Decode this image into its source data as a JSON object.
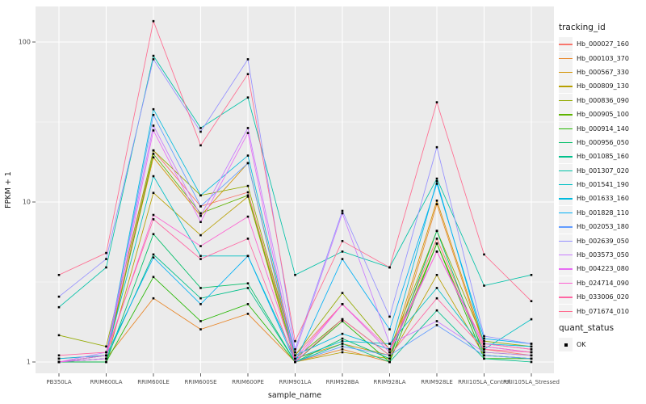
{
  "chart_data": {
    "type": "line",
    "title": "",
    "xlabel": "sample_name",
    "ylabel": "FPKM + 1",
    "y_scale": "log10",
    "y_tick_labels": [
      "1",
      "10",
      "100"
    ],
    "y_ticks": [
      1,
      10,
      100
    ],
    "y_minor_gridlines": [
      3.162,
      31.623
    ],
    "ylim": [
      0.85,
      170
    ],
    "grid": "white-on-gray-panel",
    "legend_position": "right",
    "point_marker": "black-square",
    "categories": [
      "PB350LA",
      "RRIM600LA",
      "RRIM600LE",
      "RRIM600SE",
      "RRIM600PE",
      "RRIM901LA",
      "RRIM928BA",
      "RRIM928LA",
      "RRIM928LE",
      "RRII105LA_Control",
      "RRII105LA_Stressed"
    ],
    "series": [
      {
        "name": "Hb_000027_160",
        "color": "#F8766D",
        "values": [
          1.05,
          1.1,
          21.0,
          9.4,
          11.5,
          1.1,
          2.3,
          1.15,
          5.9,
          1.2,
          1.1
        ]
      },
      {
        "name": "Hb_000103_370",
        "color": "#E88526",
        "values": [
          1.0,
          1.05,
          2.5,
          1.6,
          2.0,
          1.0,
          1.2,
          1.0,
          9.7,
          1.25,
          1.15
        ]
      },
      {
        "name": "Hb_000567_330",
        "color": "#D39200",
        "values": [
          1.0,
          1.1,
          19.0,
          8.2,
          17.5,
          1.05,
          1.3,
          1.1,
          10.2,
          1.3,
          1.2
        ]
      },
      {
        "name": "Hb_000809_130",
        "color": "#B79F00",
        "values": [
          1.0,
          1.0,
          11.4,
          6.2,
          10.8,
          1.0,
          1.15,
          1.05,
          3.5,
          1.1,
          1.05
        ]
      },
      {
        "name": "Hb_000836_090",
        "color": "#93AA00",
        "values": [
          1.47,
          1.25,
          21.0,
          11.0,
          12.6,
          1.1,
          2.7,
          1.2,
          6.6,
          1.35,
          1.25
        ]
      },
      {
        "name": "Hb_000905_100",
        "color": "#5EB300",
        "values": [
          1.0,
          1.05,
          20.0,
          8.5,
          11.0,
          1.05,
          1.85,
          1.1,
          5.5,
          1.15,
          1.1
        ]
      },
      {
        "name": "Hb_000914_140",
        "color": "#24B700",
        "values": [
          1.0,
          1.0,
          3.4,
          1.8,
          2.3,
          1.0,
          1.8,
          1.0,
          5.5,
          1.05,
          1.05
        ]
      },
      {
        "name": "Hb_000956_050",
        "color": "#00BE67",
        "values": [
          1.0,
          1.0,
          6.3,
          2.9,
          3.1,
          1.0,
          1.4,
          1.05,
          6.6,
          1.1,
          1.05
        ]
      },
      {
        "name": "Hb_001085_160",
        "color": "#00C08B",
        "values": [
          1.0,
          1.05,
          4.7,
          2.5,
          2.9,
          1.0,
          1.3,
          1.0,
          2.1,
          1.05,
          1.0
        ]
      },
      {
        "name": "Hb_001307_020",
        "color": "#00C1A7",
        "values": [
          2.2,
          3.9,
          82.0,
          29.0,
          45.0,
          3.5,
          4.9,
          3.9,
          14.0,
          3.0,
          3.5
        ]
      },
      {
        "name": "Hb_001541_190",
        "color": "#00BFC4",
        "values": [
          1.0,
          1.1,
          14.5,
          4.6,
          4.6,
          1.05,
          1.35,
          1.3,
          2.9,
          1.2,
          1.85
        ]
      },
      {
        "name": "Hb_001633_160",
        "color": "#00BADE",
        "values": [
          1.05,
          1.1,
          38.0,
          11.0,
          19.5,
          1.1,
          1.5,
          1.2,
          13.5,
          1.3,
          1.25
        ]
      },
      {
        "name": "Hb_001828_110",
        "color": "#00B0F6",
        "values": [
          1.0,
          1.1,
          4.5,
          2.3,
          4.6,
          1.0,
          4.4,
          1.6,
          13.0,
          1.4,
          1.3
        ]
      },
      {
        "name": "Hb_002053_180",
        "color": "#619CFF",
        "values": [
          1.0,
          1.05,
          35.0,
          9.4,
          17.5,
          1.0,
          1.25,
          1.1,
          1.7,
          1.1,
          1.05
        ]
      },
      {
        "name": "Hb_002639_050",
        "color": "#9590FF",
        "values": [
          2.56,
          4.4,
          78.0,
          27.5,
          78.0,
          1.2,
          8.8,
          1.92,
          22.0,
          1.45,
          1.3
        ]
      },
      {
        "name": "Hb_003573_050",
        "color": "#C77CFF",
        "values": [
          1.0,
          1.15,
          30.0,
          8.2,
          29.0,
          1.15,
          8.5,
          1.3,
          1.8,
          1.15,
          1.1
        ]
      },
      {
        "name": "Hb_004223_080",
        "color": "#E76BF3",
        "values": [
          1.0,
          1.05,
          28.0,
          7.5,
          27.0,
          1.0,
          2.3,
          1.15,
          4.9,
          1.25,
          1.15
        ]
      },
      {
        "name": "Hb_024714_090",
        "color": "#FD61D1",
        "values": [
          1.0,
          1.1,
          8.3,
          5.3,
          8.1,
          1.05,
          2.3,
          1.2,
          4.9,
          1.3,
          1.2
        ]
      },
      {
        "name": "Hb_033006_020",
        "color": "#FF67A4",
        "values": [
          1.1,
          1.15,
          7.8,
          4.4,
          5.9,
          1.0,
          1.85,
          1.1,
          2.5,
          1.2,
          1.15
        ]
      },
      {
        "name": "Hb_071674_010",
        "color": "#FF6C90",
        "values": [
          3.5,
          4.8,
          135.0,
          22.6,
          63.0,
          1.35,
          5.7,
          3.9,
          42.0,
          4.7,
          2.4
        ]
      }
    ]
  },
  "legend": {
    "tracking_title": "tracking_id",
    "quant_title": "quant_status",
    "quant_items": [
      {
        "label": "OK",
        "marker": "black-square"
      }
    ]
  },
  "colors": {
    "panel_background": "#EBEBEB",
    "gridline": "#FFFFFF",
    "axis_text": "#4D4D4D",
    "tick_mark": "#333333",
    "marker": "#000000",
    "legend_key_background": "#F2F2F2"
  }
}
